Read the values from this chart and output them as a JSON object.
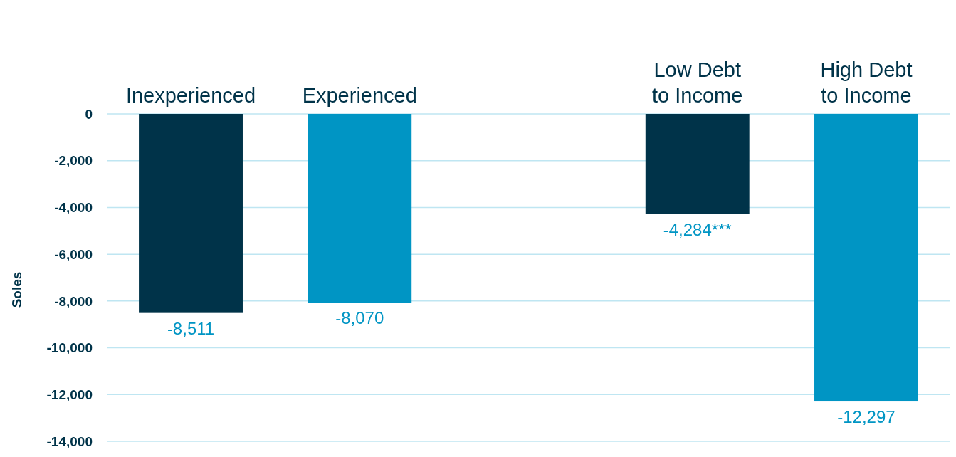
{
  "chart_data": {
    "type": "bar",
    "ylabel": "Soles",
    "categories": [
      "Inexperienced",
      "Experienced",
      null,
      "Low Debt to Income",
      "High Debt to Income"
    ],
    "values": [
      -8511,
      -8070,
      null,
      -4284,
      -12297
    ],
    "colors": [
      "#003349",
      "#0095c4",
      null,
      "#003349",
      "#0095c4"
    ],
    "value_labels": [
      "-8,511",
      "-8,070",
      null,
      "-4,284***",
      "-12,297"
    ],
    "ylim": [
      -14000,
      0
    ],
    "yticks": [
      {
        "value": 0,
        "label": "0"
      },
      {
        "value": -2000,
        "label": "-2,000"
      },
      {
        "value": -4000,
        "label": "-4,000"
      },
      {
        "value": -6000,
        "label": "-6,000"
      },
      {
        "value": -8000,
        "label": "-8,000"
      },
      {
        "value": -10000,
        "label": "-10,000"
      },
      {
        "value": -12000,
        "label": "-12,000"
      },
      {
        "value": -14000,
        "label": "-14,000"
      }
    ],
    "grid": "y"
  }
}
